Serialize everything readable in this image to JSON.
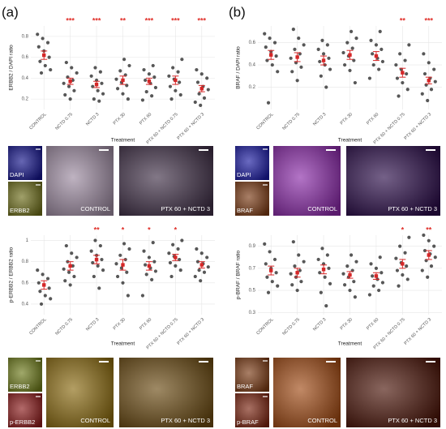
{
  "panels": [
    {
      "label": "(a)",
      "image_rows": [
        {
          "channels": [
            "DAPI",
            "ERBB2"
          ],
          "conditions": [
            "CONTROL",
            "PTX 60 + NCTD 3"
          ]
        },
        {
          "channels": [
            "ERBB2",
            "p-ERBB2"
          ],
          "conditions": [
            "CONTROL",
            "PTX 60 + NCTD 3"
          ]
        }
      ]
    },
    {
      "label": "(b)",
      "image_rows": [
        {
          "channels": [
            "DAPI",
            "BRAF"
          ],
          "conditions": [
            "CONTROL",
            "PTX 60 + NCTD 3"
          ]
        },
        {
          "channels": [
            "BRAF",
            "p-BRAF"
          ],
          "conditions": [
            "CONTROL",
            "PTX 60 + NCTD 3"
          ]
        }
      ]
    }
  ],
  "chart_data": [
    {
      "type": "dotplot",
      "ylabel": "ERBB2 / DAPI ratio",
      "xlabel": "Treatment",
      "point_color": "#3a3a3a",
      "mean_color": "#d62728",
      "grid": true,
      "categories": [
        "CONTROL",
        "NCTD 0.75",
        "NCTD 3",
        "PTX 30",
        "PTX 60",
        "PTX 60 + NCTD 0.75",
        "PTX 60 + NCTD 3"
      ],
      "ylim": [
        0.1,
        0.9
      ],
      "yticks": [
        0.2,
        0.4,
        0.6,
        0.8
      ],
      "points": [
        [
          0.82,
          0.78,
          0.74,
          0.7,
          0.66,
          0.6,
          0.56,
          0.52,
          0.48,
          0.45
        ],
        [
          0.55,
          0.5,
          0.45,
          0.41,
          0.38,
          0.35,
          0.32,
          0.28,
          0.24,
          0.2
        ],
        [
          0.5,
          0.46,
          0.42,
          0.38,
          0.35,
          0.32,
          0.28,
          0.25,
          0.2,
          0.18
        ],
        [
          0.58,
          0.52,
          0.47,
          0.43,
          0.39,
          0.36,
          0.33,
          0.3,
          0.25,
          0.2
        ],
        [
          0.52,
          0.48,
          0.44,
          0.41,
          0.38,
          0.35,
          0.31,
          0.27,
          0.23,
          0.19
        ],
        [
          0.58,
          0.5,
          0.46,
          0.42,
          0.39,
          0.36,
          0.32,
          0.28,
          0.24,
          0.2
        ],
        [
          0.48,
          0.44,
          0.4,
          0.36,
          0.32,
          0.29,
          0.25,
          0.21,
          0.17,
          0.14
        ]
      ],
      "means": [
        0.62,
        0.37,
        0.34,
        0.38,
        0.37,
        0.38,
        0.3
      ],
      "errors": [
        0.04,
        0.03,
        0.03,
        0.04,
        0.03,
        0.04,
        0.03
      ],
      "significance": [
        null,
        "***",
        "***",
        "**",
        "***",
        "***",
        "***"
      ]
    },
    {
      "type": "dotplot",
      "ylabel": "p-ERBB2 / ERBB2 ratio",
      "xlabel": "Treatment",
      "point_color": "#3a3a3a",
      "mean_color": "#d62728",
      "grid": true,
      "categories": [
        "CONTROL",
        "NCTD 0.75",
        "NCTD 3",
        "PTX 30",
        "PTX 60",
        "PTX 60 + NCTD 0.75",
        "PTX 60 + NCTD 3"
      ],
      "ylim": [
        0.3,
        1.05
      ],
      "yticks": [
        0.4,
        0.6,
        0.8,
        1
      ],
      "points": [
        [
          0.72,
          0.68,
          0.64,
          0.6,
          0.58,
          0.55,
          0.52,
          0.48,
          0.45,
          0.4
        ],
        [
          0.95,
          0.88,
          0.84,
          0.8,
          0.76,
          0.73,
          0.7,
          0.66,
          0.62,
          0.58
        ],
        [
          1.0,
          0.95,
          0.9,
          0.86,
          0.82,
          0.79,
          0.76,
          0.72,
          0.66,
          0.55
        ],
        [
          0.97,
          0.92,
          0.86,
          0.82,
          0.78,
          0.74,
          0.7,
          0.66,
          0.6,
          0.48
        ],
        [
          0.98,
          0.9,
          0.84,
          0.8,
          0.77,
          0.74,
          0.71,
          0.68,
          0.63,
          0.48
        ],
        [
          1.0,
          0.96,
          0.92,
          0.88,
          0.85,
          0.82,
          0.79,
          0.76,
          0.72,
          0.66
        ],
        [
          0.92,
          0.88,
          0.84,
          0.8,
          0.78,
          0.75,
          0.72,
          0.7,
          0.66,
          0.62
        ]
      ],
      "means": [
        0.58,
        0.76,
        0.82,
        0.77,
        0.76,
        0.84,
        0.77
      ],
      "errors": [
        0.04,
        0.04,
        0.04,
        0.05,
        0.04,
        0.03,
        0.03
      ],
      "significance": [
        null,
        null,
        "**",
        "*",
        "*",
        "*",
        null
      ]
    },
    {
      "type": "dotplot",
      "ylabel": "BRAF / DAPI ratio",
      "xlabel": "Treatment",
      "point_color": "#3a3a3a",
      "mean_color": "#d62728",
      "grid": true,
      "categories": [
        "CONTROL",
        "NCTD 0.75",
        "NCTD 3",
        "PTX 30",
        "PTX 60",
        "PTX 60 + NCTD 0.75",
        "PTX 60 + NCTD 3"
      ],
      "ylim": [
        0,
        0.75
      ],
      "yticks": [
        0.2,
        0.4,
        0.6
      ],
      "points": [
        [
          0.68,
          0.64,
          0.6,
          0.56,
          0.52,
          0.48,
          0.44,
          0.4,
          0.34,
          0.06
        ],
        [
          0.72,
          0.64,
          0.58,
          0.54,
          0.5,
          0.46,
          0.42,
          0.38,
          0.34,
          0.26
        ],
        [
          0.62,
          0.58,
          0.54,
          0.5,
          0.46,
          0.43,
          0.4,
          0.36,
          0.3,
          0.2
        ],
        [
          0.7,
          0.64,
          0.6,
          0.55,
          0.51,
          0.48,
          0.44,
          0.4,
          0.35,
          0.24
        ],
        [
          0.7,
          0.62,
          0.58,
          0.54,
          0.5,
          0.46,
          0.43,
          0.4,
          0.36,
          0.28
        ],
        [
          0.58,
          0.5,
          0.44,
          0.4,
          0.36,
          0.32,
          0.28,
          0.24,
          0.18,
          0.12
        ],
        [
          0.5,
          0.42,
          0.36,
          0.32,
          0.28,
          0.25,
          0.22,
          0.18,
          0.14,
          0.08
        ]
      ],
      "means": [
        0.49,
        0.47,
        0.44,
        0.49,
        0.48,
        0.33,
        0.26
      ],
      "errors": [
        0.04,
        0.04,
        0.04,
        0.04,
        0.04,
        0.04,
        0.03
      ],
      "significance": [
        null,
        null,
        null,
        null,
        null,
        "**",
        "***"
      ]
    },
    {
      "type": "dotplot",
      "ylabel": "p-BRAF / BRAF ratio",
      "xlabel": "Treatment",
      "point_color": "#3a3a3a",
      "mean_color": "#d62728",
      "grid": true,
      "categories": [
        "CONTROL",
        "NCTD 0.75",
        "NCTD 3",
        "PTX 30",
        "PTX 60",
        "PTX 60 + NCTD 0.75",
        "PTX 60 + NCTD 3"
      ],
      "ylim": [
        0.28,
        1.0
      ],
      "yticks": [
        0.3,
        0.5,
        0.7,
        0.9
      ],
      "points": [
        [
          0.92,
          0.85,
          0.78,
          0.74,
          0.7,
          0.66,
          0.62,
          0.58,
          0.54,
          0.48
        ],
        [
          0.94,
          0.82,
          0.76,
          0.72,
          0.68,
          0.65,
          0.62,
          0.58,
          0.55,
          0.5
        ],
        [
          0.88,
          0.82,
          0.78,
          0.74,
          0.7,
          0.66,
          0.62,
          0.56,
          0.48,
          0.36
        ],
        [
          0.82,
          0.76,
          0.72,
          0.68,
          0.65,
          0.62,
          0.58,
          0.55,
          0.5,
          0.44
        ],
        [
          0.8,
          0.74,
          0.7,
          0.66,
          0.63,
          0.6,
          0.57,
          0.54,
          0.5,
          0.46
        ],
        [
          0.98,
          0.9,
          0.84,
          0.79,
          0.75,
          0.72,
          0.68,
          0.64,
          0.6,
          0.54
        ],
        [
          1.0,
          0.95,
          0.9,
          0.86,
          0.83,
          0.8,
          0.77,
          0.72,
          0.68,
          0.62
        ]
      ],
      "means": [
        0.68,
        0.66,
        0.69,
        0.64,
        0.63,
        0.74,
        0.82
      ],
      "errors": [
        0.04,
        0.04,
        0.04,
        0.03,
        0.03,
        0.04,
        0.04
      ],
      "significance": [
        null,
        null,
        null,
        null,
        null,
        "*",
        "**"
      ]
    }
  ]
}
